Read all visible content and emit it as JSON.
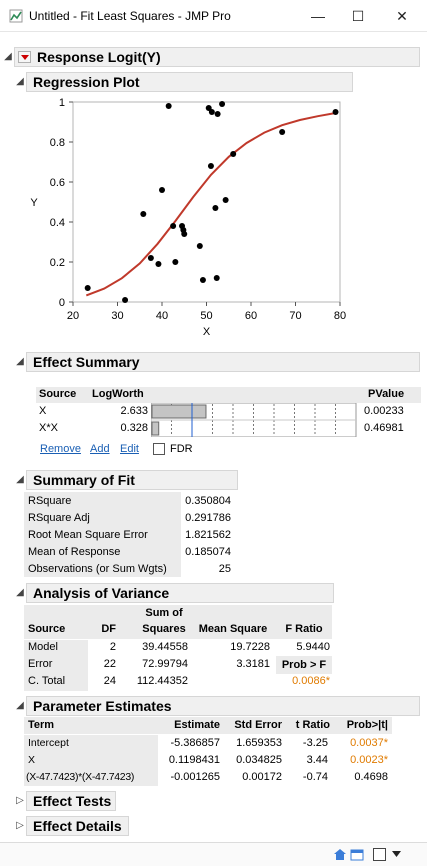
{
  "window": {
    "title": "Untitled - Fit Least Squares - JMP Pro",
    "minimize": "—",
    "maximize": "☐",
    "close": "✕"
  },
  "report": {
    "title": "Response Logit(Y)"
  },
  "regression_plot": {
    "header": "Regression Plot",
    "chart_data": {
      "type": "scatter",
      "xlabel": "X",
      "ylabel": "Y",
      "xlim": [
        20,
        80
      ],
      "ylim": [
        0,
        1
      ],
      "xticks": [
        "20",
        "30",
        "40",
        "50",
        "60",
        "70",
        "80"
      ],
      "yticks": [
        "0",
        "0.2",
        "0.4",
        "0.6",
        "0.8",
        "1"
      ],
      "grid": false,
      "points": [
        [
          23.3,
          0.07
        ],
        [
          31.7,
          0.01
        ],
        [
          35.8,
          0.44
        ],
        [
          37.5,
          0.22
        ],
        [
          39.2,
          0.19
        ],
        [
          40.0,
          0.56
        ],
        [
          41.5,
          0.98
        ],
        [
          42.5,
          0.38
        ],
        [
          43.0,
          0.2
        ],
        [
          44.5,
          0.38
        ],
        [
          44.8,
          0.36
        ],
        [
          45.0,
          0.34
        ],
        [
          48.5,
          0.28
        ],
        [
          49.2,
          0.11
        ],
        [
          50.5,
          0.97
        ],
        [
          51.0,
          0.68
        ],
        [
          51.2,
          0.95
        ],
        [
          52.0,
          0.47
        ],
        [
          52.3,
          0.12
        ],
        [
          52.5,
          0.94
        ],
        [
          53.5,
          0.99
        ],
        [
          54.3,
          0.51
        ],
        [
          56.0,
          0.74
        ],
        [
          67.0,
          0.85
        ],
        [
          79.0,
          0.95
        ]
      ],
      "fit_curve": {
        "color": "#c0392b",
        "samples": [
          [
            23.0,
            0.033
          ],
          [
            27.0,
            0.067
          ],
          [
            31.0,
            0.119
          ],
          [
            35.0,
            0.193
          ],
          [
            39.0,
            0.291
          ],
          [
            43.0,
            0.405
          ],
          [
            47.0,
            0.525
          ],
          [
            51.0,
            0.636
          ],
          [
            55.0,
            0.726
          ],
          [
            59.0,
            0.795
          ],
          [
            63.0,
            0.847
          ],
          [
            67.0,
            0.884
          ],
          [
            71.0,
            0.91
          ],
          [
            75.0,
            0.929
          ],
          [
            79.0,
            0.945
          ]
        ]
      }
    }
  },
  "effect_summary": {
    "header": "Effect Summary",
    "columns": [
      "Source",
      "LogWorth",
      "PValue"
    ],
    "rows": [
      {
        "source": "X",
        "logworth": "2.633",
        "pvalue": "0.00233",
        "bar_value": 2.633
      },
      {
        "source": "X*X",
        "logworth": "0.328",
        "pvalue": "0.46981",
        "bar_value": 0.328
      }
    ],
    "bar_max": 10,
    "reference_line": 2,
    "remove": "Remove",
    "add": "Add",
    "edit": "Edit",
    "fdr": "FDR"
  },
  "summary_of_fit": {
    "header": "Summary of Fit",
    "rows": [
      [
        "RSquare",
        "0.350804"
      ],
      [
        "RSquare Adj",
        "0.291786"
      ],
      [
        "Root Mean Square Error",
        "1.821562"
      ],
      [
        "Mean of Response",
        "0.185074"
      ],
      [
        "Observations (or Sum Wgts)",
        "25"
      ]
    ]
  },
  "anova": {
    "header": "Analysis of Variance",
    "col_source": "Source",
    "col_df": "DF",
    "col_ss_top": "Sum of",
    "col_ss_bottom": "Squares",
    "col_ms": "Mean Square",
    "col_f": "F Ratio",
    "rows": [
      {
        "source": "Model",
        "df": "2",
        "ss": "39.44558",
        "ms": "19.7228",
        "f": "5.9440"
      },
      {
        "source": "Error",
        "df": "22",
        "ss": "72.99794",
        "ms": "3.3181",
        "f": "Prob > F"
      },
      {
        "source": "C. Total",
        "df": "24",
        "ss": "112.44352",
        "ms": "",
        "f": "0.0086*"
      }
    ]
  },
  "parameter_estimates": {
    "header": "Parameter Estimates",
    "columns": [
      "Term",
      "Estimate",
      "Std Error",
      "t Ratio",
      "Prob>|t|"
    ],
    "rows": [
      [
        "Intercept",
        "-5.386857",
        "1.659353",
        "-3.25",
        "0.0037*"
      ],
      [
        "X",
        "0.1198431",
        "0.034825",
        "3.44",
        "0.0023*"
      ],
      [
        "(X-47.7423)*(X-47.7423)",
        "-0.001265",
        "0.00172",
        "-0.74",
        "0.4698"
      ]
    ]
  },
  "effect_tests": {
    "header": "Effect Tests"
  },
  "effect_details": {
    "header": "Effect Details"
  }
}
